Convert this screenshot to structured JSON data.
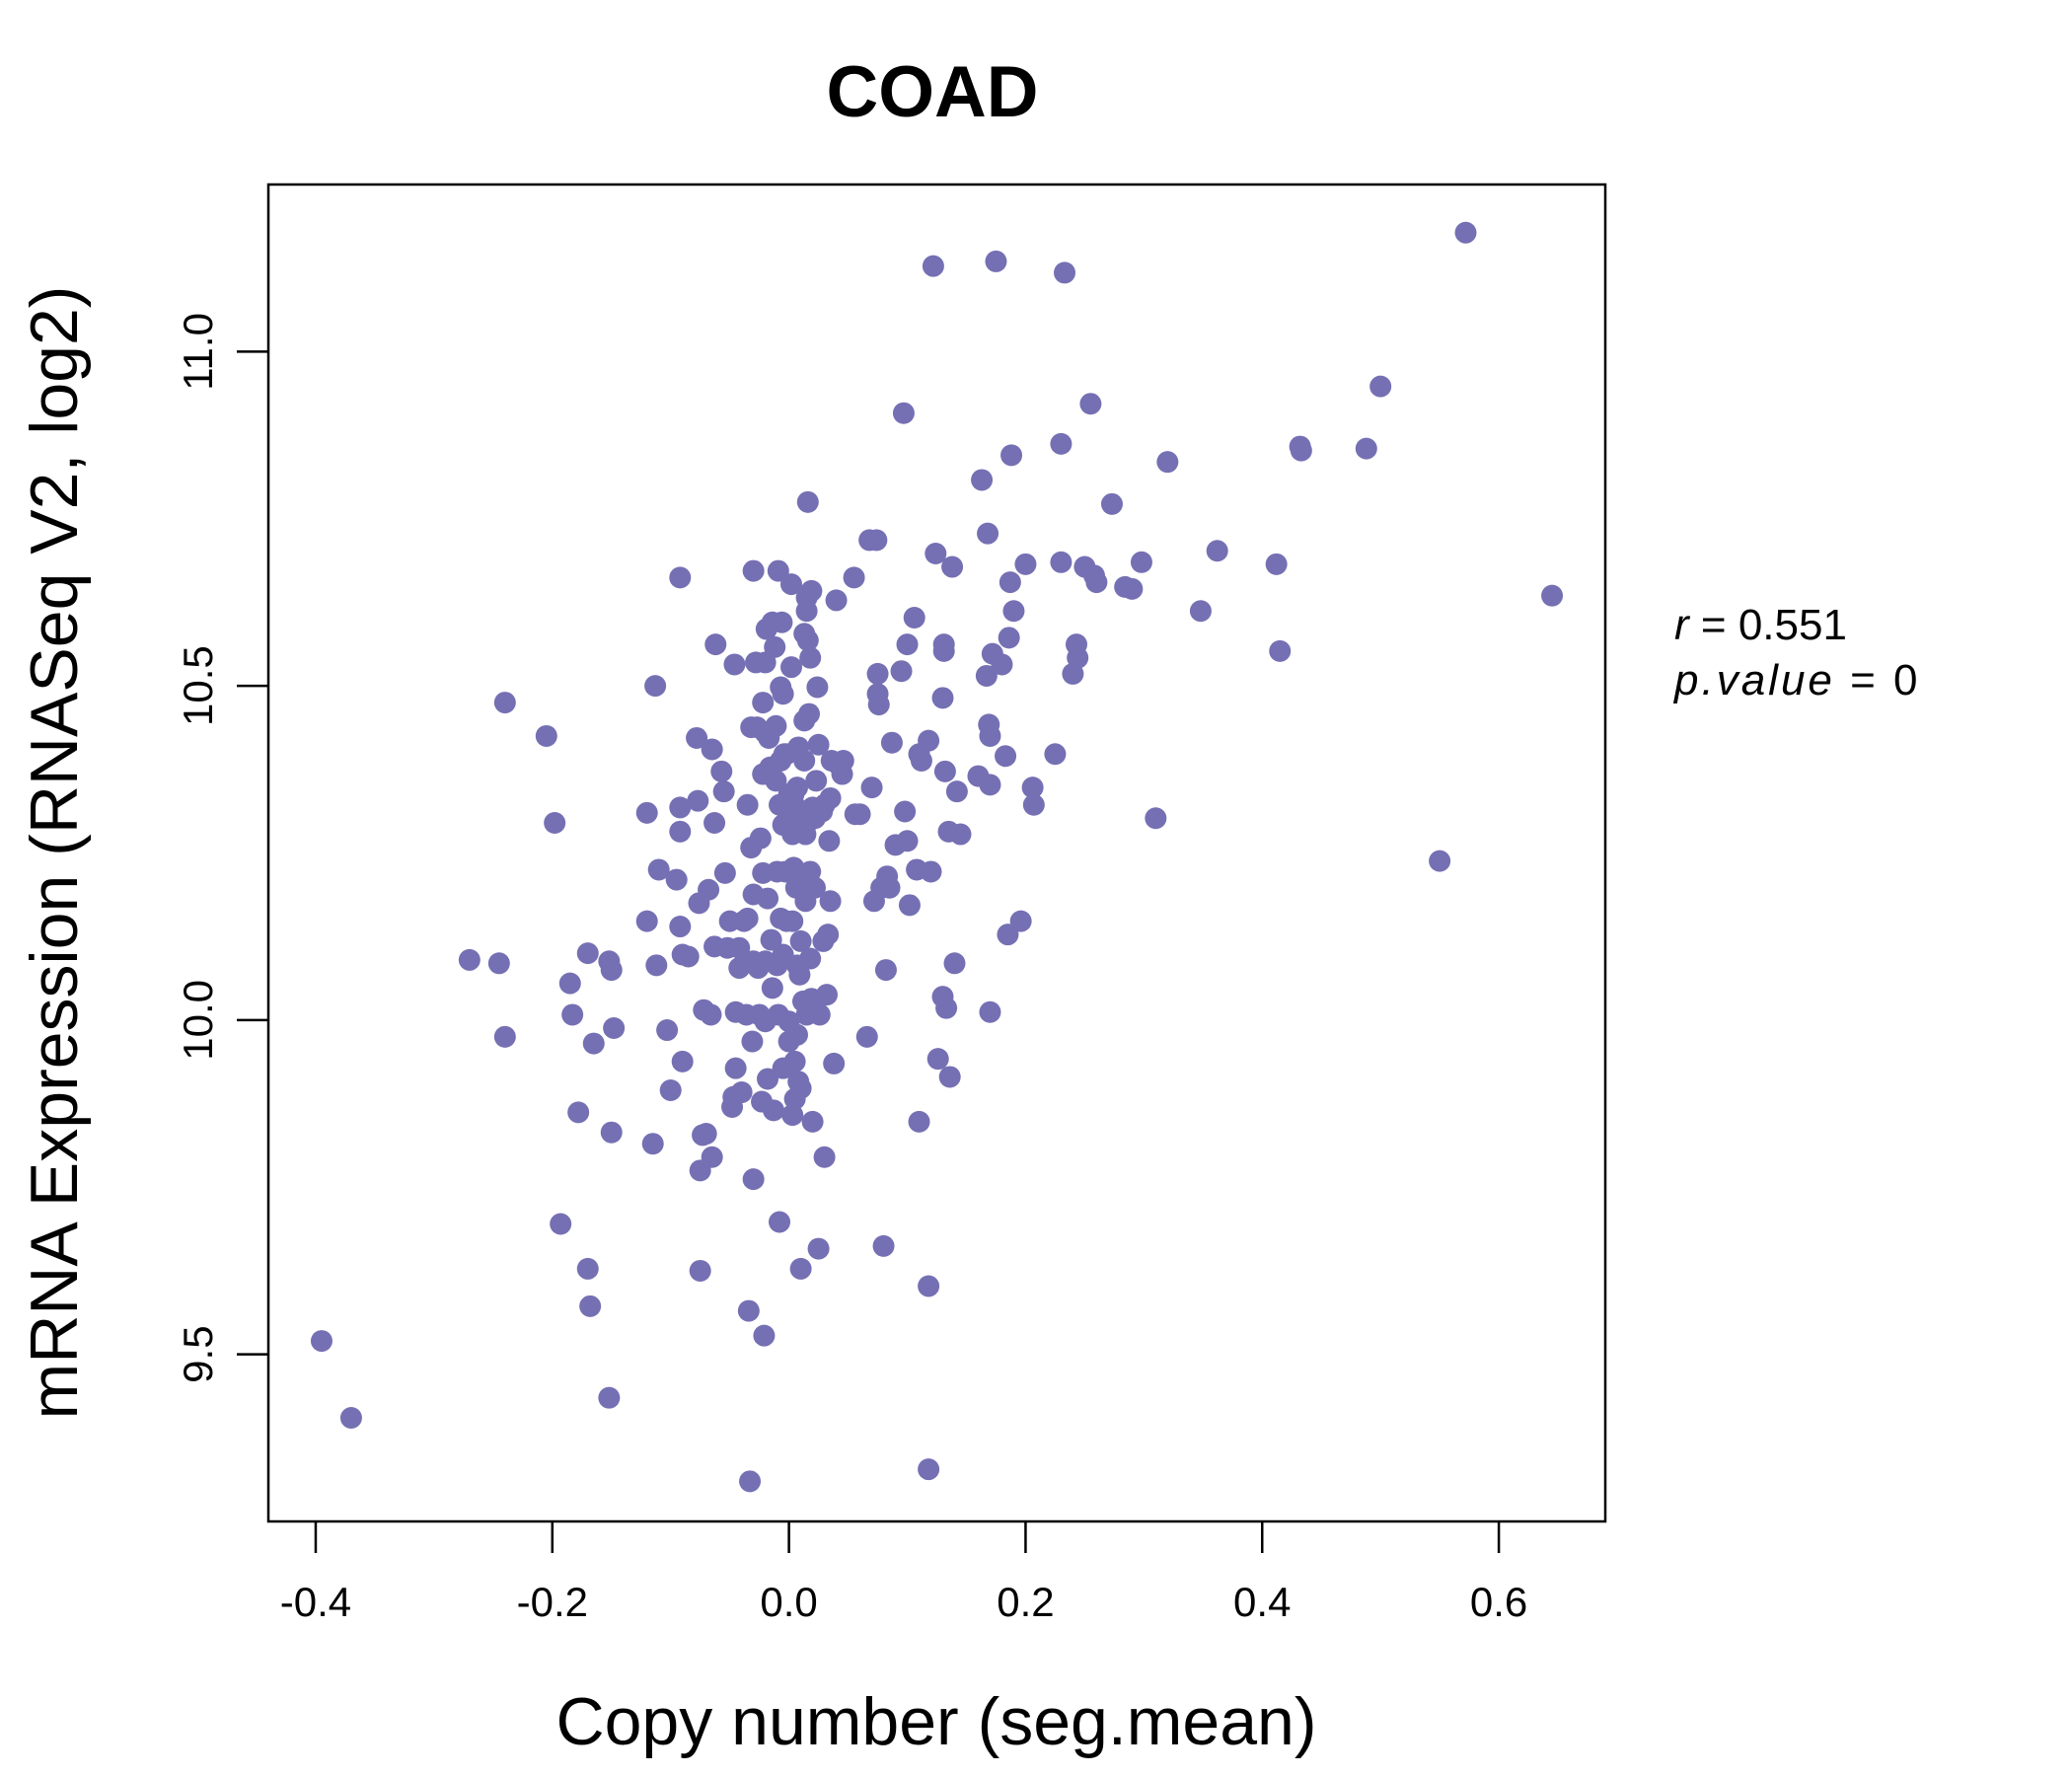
{
  "chart_data": {
    "type": "scatter",
    "title": "COAD",
    "xlabel": "Copy number (seg.mean)",
    "ylabel": "mRNA Expression (RNASeq V2, log2)",
    "xlim": [
      -0.44,
      0.69
    ],
    "ylim": [
      9.25,
      11.25
    ],
    "xticks": [
      -0.4,
      -0.2,
      0.0,
      0.2,
      0.4,
      0.6
    ],
    "xtick_labels": [
      "-0.4",
      "-0.2",
      "0.0",
      "0.2",
      "0.4",
      "0.6"
    ],
    "yticks": [
      9.5,
      10.0,
      10.5,
      11.0
    ],
    "ytick_labels": [
      "9.5",
      "10.0",
      "10.5",
      "11.0"
    ],
    "point_color": "#7570B3",
    "grid": false,
    "annotation": {
      "r_label": "r",
      "r_value": "0.551",
      "p_label": "p.value",
      "p_value": "0",
      "placement": "right"
    },
    "points": [
      [
        -0.395,
        9.52
      ],
      [
        -0.37,
        9.405
      ],
      [
        -0.27,
        10.09
      ],
      [
        -0.245,
        10.085
      ],
      [
        -0.24,
        10.475
      ],
      [
        -0.24,
        9.975
      ],
      [
        -0.205,
        10.425
      ],
      [
        -0.198,
        10.295
      ],
      [
        -0.193,
        9.695
      ],
      [
        -0.185,
        10.055
      ],
      [
        -0.183,
        10.008
      ],
      [
        -0.178,
        9.862
      ],
      [
        -0.17,
        10.1
      ],
      [
        -0.17,
        9.628
      ],
      [
        -0.168,
        9.572
      ],
      [
        -0.165,
        9.965
      ],
      [
        -0.152,
        10.088
      ],
      [
        -0.152,
        9.435
      ],
      [
        -0.15,
        10.075
      ],
      [
        -0.15,
        9.832
      ],
      [
        -0.148,
        9.988
      ],
      [
        -0.12,
        10.31
      ],
      [
        -0.12,
        10.148
      ],
      [
        -0.115,
        9.815
      ],
      [
        -0.113,
        10.5
      ],
      [
        -0.112,
        10.082
      ],
      [
        -0.11,
        10.225
      ],
      [
        -0.103,
        9.985
      ],
      [
        -0.1,
        9.895
      ],
      [
        -0.095,
        10.21
      ],
      [
        -0.092,
        10.662
      ],
      [
        -0.092,
        10.318
      ],
      [
        -0.092,
        10.282
      ],
      [
        -0.092,
        10.14
      ],
      [
        -0.09,
        10.098
      ],
      [
        -0.09,
        9.938
      ],
      [
        -0.085,
        10.095
      ],
      [
        -0.078,
        10.422
      ],
      [
        -0.077,
        10.328
      ],
      [
        -0.076,
        10.175
      ],
      [
        -0.075,
        9.775
      ],
      [
        -0.075,
        9.625
      ],
      [
        -0.073,
        9.828
      ],
      [
        -0.072,
        10.015
      ],
      [
        -0.07,
        9.83
      ],
      [
        -0.068,
        10.195
      ],
      [
        -0.066,
        10.008
      ],
      [
        -0.065,
        10.405
      ],
      [
        -0.065,
        9.795
      ],
      [
        -0.063,
        10.295
      ],
      [
        -0.063,
        10.11
      ],
      [
        -0.062,
        10.562
      ],
      [
        -0.057,
        10.372
      ],
      [
        -0.055,
        10.342
      ],
      [
        -0.054,
        10.22
      ],
      [
        -0.052,
        10.108
      ],
      [
        -0.05,
        10.148
      ],
      [
        -0.048,
        9.87
      ],
      [
        -0.047,
        9.885
      ],
      [
        -0.046,
        10.532
      ],
      [
        -0.045,
        10.012
      ],
      [
        -0.045,
        9.928
      ],
      [
        -0.042,
        10.078
      ],
      [
        -0.042,
        10.108
      ],
      [
        -0.04,
        9.892
      ],
      [
        -0.038,
        10.148
      ],
      [
        -0.036,
        10.008
      ],
      [
        -0.035,
        10.322
      ],
      [
        -0.035,
        10.152
      ],
      [
        -0.034,
        9.565
      ],
      [
        -0.033,
        9.31
      ],
      [
        -0.032,
        10.438
      ],
      [
        -0.032,
        10.258
      ],
      [
        -0.031,
        9.968
      ],
      [
        -0.03,
        10.188
      ],
      [
        -0.03,
        10.088
      ],
      [
        -0.03,
        9.762
      ],
      [
        -0.03,
        10.672
      ],
      [
        -0.028,
        10.535
      ],
      [
        -0.027,
        10.438
      ],
      [
        -0.026,
        10.078
      ],
      [
        -0.025,
        10.008
      ],
      [
        -0.024,
        10.272
      ],
      [
        -0.023,
        9.878
      ],
      [
        -0.022,
        10.475
      ],
      [
        -0.022,
        10.368
      ],
      [
        -0.022,
        10.22
      ],
      [
        -0.021,
        9.528
      ],
      [
        -0.02,
        10.535
      ],
      [
        -0.02,
        10.43
      ],
      [
        -0.02,
        10.088
      ],
      [
        -0.02,
        9.998
      ],
      [
        -0.019,
        10.585
      ],
      [
        -0.018,
        10.182
      ],
      [
        -0.018,
        9.912
      ],
      [
        -0.017,
        10.422
      ],
      [
        -0.016,
        10.378
      ],
      [
        -0.015,
        10.12
      ],
      [
        -0.014,
        10.595
      ],
      [
        -0.014,
        10.048
      ],
      [
        -0.013,
        9.865
      ],
      [
        -0.012,
        10.558
      ],
      [
        -0.011,
        10.44
      ],
      [
        -0.011,
        10.358
      ],
      [
        -0.01,
        10.082
      ],
      [
        -0.01,
        10.222
      ],
      [
        -0.009,
        10.008
      ],
      [
        -0.009,
        10.672
      ],
      [
        -0.008,
        10.322
      ],
      [
        -0.008,
        9.698
      ],
      [
        -0.007,
        10.498
      ],
      [
        -0.007,
        10.388
      ],
      [
        -0.007,
        10.152
      ],
      [
        -0.006,
        10.595
      ],
      [
        -0.005,
        10.488
      ],
      [
        -0.005,
        10.292
      ],
      [
        -0.005,
        10.098
      ],
      [
        -0.005,
        9.928
      ],
      [
        -0.004,
        10.398
      ],
      [
        -0.003,
        10.222
      ],
      [
        -0.002,
        10.398
      ],
      [
        -0.002,
        10.148
      ],
      [
        -0.001,
        10.312
      ],
      [
        0.0,
        10.338
      ],
      [
        0.0,
        9.998
      ],
      [
        0.0,
        9.968
      ],
      [
        0.002,
        10.652
      ],
      [
        0.002,
        10.528
      ],
      [
        0.003,
        10.278
      ],
      [
        0.003,
        10.148
      ],
      [
        0.003,
        9.858
      ],
      [
        0.004,
        10.338
      ],
      [
        0.004,
        10.228
      ],
      [
        0.005,
        9.938
      ],
      [
        0.005,
        9.882
      ],
      [
        0.006,
        10.318
      ],
      [
        0.006,
        10.198
      ],
      [
        0.007,
        10.348
      ],
      [
        0.007,
        10.082
      ],
      [
        0.007,
        9.978
      ],
      [
        0.008,
        10.408
      ],
      [
        0.008,
        9.908
      ],
      [
        0.009,
        10.298
      ],
      [
        0.009,
        10.068
      ],
      [
        0.01,
        10.118
      ],
      [
        0.01,
        9.898
      ],
      [
        0.01,
        9.628
      ],
      [
        0.011,
        10.212
      ],
      [
        0.012,
        10.028
      ],
      [
        0.013,
        10.388
      ],
      [
        0.013,
        10.578
      ],
      [
        0.013,
        10.448
      ],
      [
        0.014,
        10.278
      ],
      [
        0.014,
        10.178
      ],
      [
        0.015,
        10.008
      ],
      [
        0.015,
        10.632
      ],
      [
        0.015,
        10.612
      ],
      [
        0.016,
        10.775
      ],
      [
        0.016,
        10.568
      ],
      [
        0.017,
        10.458
      ],
      [
        0.017,
        10.298
      ],
      [
        0.018,
        10.542
      ],
      [
        0.018,
        10.222
      ],
      [
        0.018,
        10.092
      ],
      [
        0.019,
        10.642
      ],
      [
        0.019,
        10.032
      ],
      [
        0.02,
        10.318
      ],
      [
        0.02,
        9.848
      ],
      [
        0.022,
        10.302
      ],
      [
        0.022,
        10.198
      ],
      [
        0.023,
        10.358
      ],
      [
        0.023,
        10.028
      ],
      [
        0.024,
        10.498
      ],
      [
        0.024,
        10.308
      ],
      [
        0.025,
        10.412
      ],
      [
        0.025,
        9.658
      ],
      [
        0.026,
        10.008
      ],
      [
        0.028,
        10.312
      ],
      [
        0.029,
        10.118
      ],
      [
        0.03,
        10.322
      ],
      [
        0.03,
        9.795
      ],
      [
        0.032,
        10.038
      ],
      [
        0.033,
        10.128
      ],
      [
        0.034,
        10.268
      ],
      [
        0.035,
        10.178
      ],
      [
        0.035,
        10.332
      ],
      [
        0.036,
        10.388
      ],
      [
        0.038,
        9.935
      ],
      [
        0.04,
        10.628
      ],
      [
        0.042,
        10.382
      ],
      [
        0.045,
        10.368
      ],
      [
        0.046,
        10.388
      ],
      [
        0.055,
        10.662
      ],
      [
        0.056,
        10.308
      ],
      [
        0.06,
        10.308
      ],
      [
        0.066,
        9.975
      ],
      [
        0.068,
        10.718
      ],
      [
        0.07,
        10.348
      ],
      [
        0.072,
        10.178
      ],
      [
        0.074,
        10.718
      ],
      [
        0.075,
        10.518
      ],
      [
        0.075,
        10.488
      ],
      [
        0.076,
        10.472
      ],
      [
        0.078,
        10.198
      ],
      [
        0.08,
        9.662
      ],
      [
        0.082,
        10.075
      ],
      [
        0.083,
        10.215
      ],
      [
        0.085,
        10.198
      ],
      [
        0.087,
        10.415
      ],
      [
        0.09,
        10.262
      ],
      [
        0.095,
        10.522
      ],
      [
        0.097,
        10.908
      ],
      [
        0.098,
        10.312
      ],
      [
        0.1,
        10.268
      ],
      [
        0.1,
        10.562
      ],
      [
        0.102,
        10.172
      ],
      [
        0.106,
        10.602
      ],
      [
        0.108,
        10.225
      ],
      [
        0.11,
        9.848
      ],
      [
        0.11,
        10.398
      ],
      [
        0.112,
        10.388
      ],
      [
        0.118,
        10.418
      ],
      [
        0.118,
        9.602
      ],
      [
        0.118,
        9.328
      ],
      [
        0.12,
        10.222
      ],
      [
        0.122,
        11.128
      ],
      [
        0.124,
        10.698
      ],
      [
        0.126,
        9.942
      ],
      [
        0.13,
        10.482
      ],
      [
        0.13,
        10.035
      ],
      [
        0.131,
        10.562
      ],
      [
        0.131,
        10.552
      ],
      [
        0.132,
        10.372
      ],
      [
        0.133,
        10.018
      ],
      [
        0.135,
        10.282
      ],
      [
        0.136,
        9.915
      ],
      [
        0.138,
        10.678
      ],
      [
        0.14,
        10.085
      ],
      [
        0.142,
        10.342
      ],
      [
        0.145,
        10.278
      ],
      [
        0.16,
        10.365
      ],
      [
        0.163,
        10.808
      ],
      [
        0.167,
        10.515
      ],
      [
        0.168,
        10.728
      ],
      [
        0.169,
        10.442
      ],
      [
        0.17,
        10.425
      ],
      [
        0.17,
        10.012
      ],
      [
        0.17,
        10.352
      ],
      [
        0.172,
        10.548
      ],
      [
        0.175,
        11.135
      ],
      [
        0.18,
        10.532
      ],
      [
        0.183,
        10.395
      ],
      [
        0.185,
        10.128
      ],
      [
        0.186,
        10.572
      ],
      [
        0.187,
        10.655
      ],
      [
        0.188,
        10.845
      ],
      [
        0.19,
        10.612
      ],
      [
        0.196,
        10.148
      ],
      [
        0.2,
        10.682
      ],
      [
        0.206,
        10.348
      ],
      [
        0.207,
        10.322
      ],
      [
        0.225,
        10.398
      ],
      [
        0.23,
        10.862
      ],
      [
        0.23,
        10.685
      ],
      [
        0.233,
        11.118
      ],
      [
        0.24,
        10.518
      ],
      [
        0.243,
        10.562
      ],
      [
        0.244,
        10.542
      ],
      [
        0.25,
        10.678
      ],
      [
        0.255,
        10.922
      ],
      [
        0.258,
        10.665
      ],
      [
        0.26,
        10.655
      ],
      [
        0.273,
        10.772
      ],
      [
        0.284,
        10.648
      ],
      [
        0.29,
        10.645
      ],
      [
        0.298,
        10.685
      ],
      [
        0.31,
        10.302
      ],
      [
        0.32,
        10.835
      ],
      [
        0.348,
        10.612
      ],
      [
        0.362,
        10.702
      ],
      [
        0.412,
        10.682
      ],
      [
        0.415,
        10.552
      ],
      [
        0.432,
        10.858
      ],
      [
        0.433,
        10.852
      ],
      [
        0.488,
        10.855
      ],
      [
        0.5,
        10.948
      ],
      [
        0.55,
        10.238
      ],
      [
        0.572,
        11.178
      ],
      [
        0.645,
        10.635
      ]
    ]
  }
}
